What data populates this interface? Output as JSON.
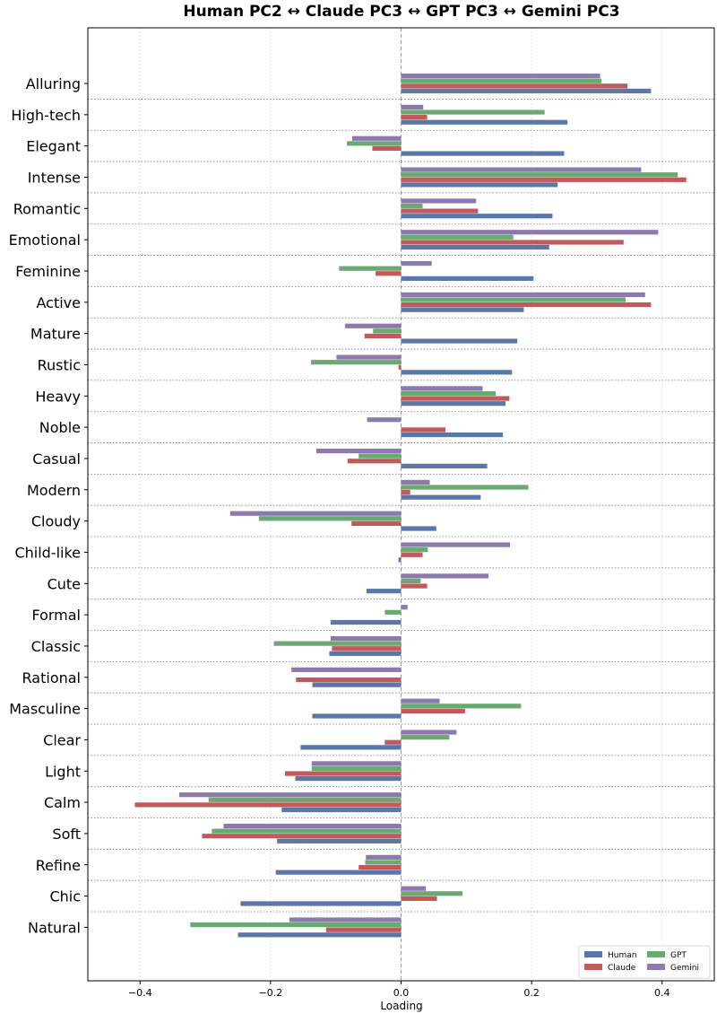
{
  "chart_data": {
    "type": "bar",
    "orientation": "horizontal",
    "title": "Human PC2  ↔  Claude PC3  ↔  GPT PC3  ↔  Gemini PC3",
    "xlabel": "Loading",
    "ylabel": "",
    "xlim": [
      -0.48,
      0.48
    ],
    "xticks": [
      -0.4,
      -0.2,
      0.0,
      0.2,
      0.4
    ],
    "xtick_labels": [
      "−0.4",
      "−0.2",
      "0.0",
      "0.2",
      "0.4"
    ],
    "grid": true,
    "legend_position": "bottom-right",
    "categories": [
      "Alluring",
      "High-tech",
      "Elegant",
      "Intense",
      "Romantic",
      "Emotional",
      "Feminine",
      "Active",
      "Mature",
      "Rustic",
      "Heavy",
      "Noble",
      "Casual",
      "Modern",
      "Cloudy",
      "Child-like",
      "Cute",
      "Formal",
      "Classic",
      "Rational",
      "Masculine",
      "Clear",
      "Light",
      "Calm",
      "Soft",
      "Refine",
      "Chic",
      "Natural"
    ],
    "series": [
      {
        "name": "Human",
        "color": "#5b77a8",
        "values": [
          0.383,
          0.255,
          0.25,
          0.24,
          0.232,
          0.227,
          0.203,
          0.188,
          0.178,
          0.17,
          0.16,
          0.156,
          0.132,
          0.122,
          0.054,
          -0.004,
          -0.053,
          -0.108,
          -0.11,
          -0.136,
          -0.136,
          -0.154,
          -0.162,
          -0.183,
          -0.19,
          -0.192,
          -0.246,
          -0.25
        ]
      },
      {
        "name": "Claude",
        "color": "#c05a5b",
        "values": [
          0.347,
          0.04,
          -0.044,
          0.437,
          0.118,
          0.341,
          -0.039,
          0.383,
          -0.056,
          -0.004,
          0.166,
          0.068,
          -0.082,
          0.014,
          -0.076,
          0.033,
          0.04,
          0.0,
          -0.106,
          -0.161,
          0.098,
          -0.025,
          -0.178,
          -0.408,
          -0.305,
          -0.065,
          0.055,
          -0.115
        ]
      },
      {
        "name": "GPT",
        "color": "#6aaa72",
        "values": [
          0.307,
          0.22,
          -0.083,
          0.424,
          0.033,
          0.172,
          -0.095,
          0.344,
          -0.043,
          -0.138,
          0.145,
          0.0,
          -0.065,
          0.195,
          -0.218,
          0.041,
          0.03,
          -0.025,
          -0.195,
          0.0,
          0.184,
          0.074,
          -0.137,
          -0.295,
          -0.29,
          -0.055,
          0.094,
          -0.323
        ]
      },
      {
        "name": "Gemini",
        "color": "#8d7aad",
        "values": [
          0.305,
          0.034,
          -0.075,
          0.368,
          0.115,
          0.394,
          0.047,
          0.374,
          -0.086,
          -0.099,
          0.125,
          -0.052,
          -0.13,
          0.044,
          -0.262,
          0.167,
          0.134,
          0.01,
          -0.108,
          -0.168,
          0.059,
          0.085,
          -0.137,
          -0.34,
          -0.272,
          -0.054,
          0.038,
          -0.171
        ]
      }
    ]
  }
}
